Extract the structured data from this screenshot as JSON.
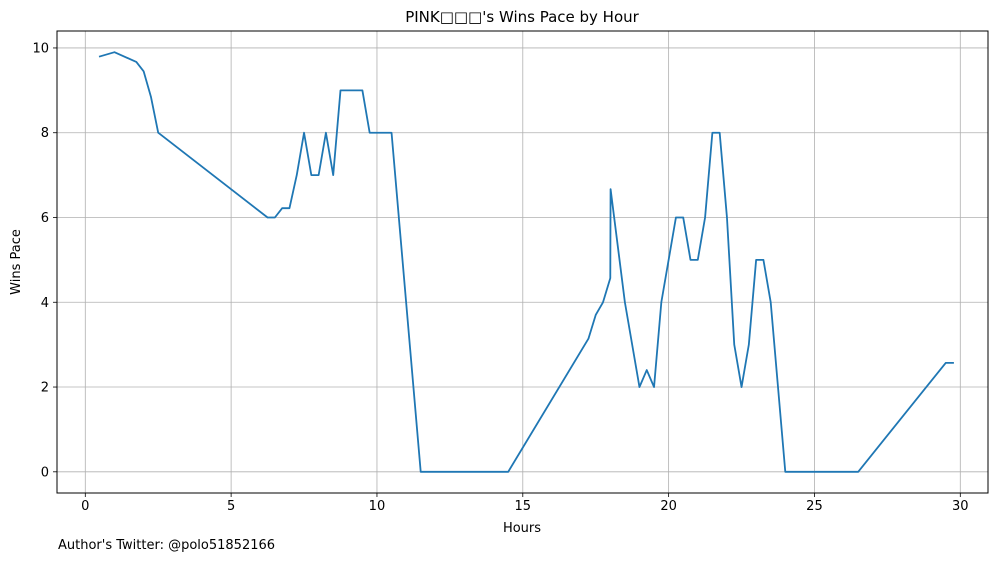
{
  "chart_data": {
    "type": "line",
    "title": "PINK□□□'s Wins Pace by Hour",
    "xlabel": "Hours",
    "ylabel": "Wins Pace",
    "xlim": [
      -0.97,
      30.95
    ],
    "ylim": [
      -0.5,
      10.4
    ],
    "xticks": [
      0,
      5,
      10,
      15,
      20,
      25,
      30
    ],
    "yticks": [
      0,
      2,
      4,
      6,
      8,
      10
    ],
    "grid": true,
    "color": "#1f77b4",
    "series": [
      {
        "x": [
          0.5,
          1.0,
          1.75,
          2.0,
          2.25,
          2.5,
          6.25,
          6.5,
          6.75,
          7.0,
          7.25,
          7.5,
          7.75,
          8.0,
          8.25,
          8.5,
          8.75,
          9.0,
          9.25,
          9.5,
          9.75,
          10.0,
          10.25,
          10.5,
          11.5,
          14.5,
          17.25,
          17.5,
          17.75,
          18.0,
          18.01,
          18.5,
          18.75,
          19.0,
          19.25,
          19.5,
          19.75,
          20.0,
          20.25,
          20.5,
          20.75,
          21.0,
          21.25,
          21.5,
          21.75,
          22.0,
          22.25,
          22.5,
          22.75,
          23.0,
          23.25,
          23.5,
          24.0,
          26.5,
          29.5,
          29.75
        ],
        "y": [
          9.8,
          9.9,
          9.67,
          9.45,
          8.85,
          8.0,
          6.0,
          6.0,
          6.22,
          6.22,
          7.0,
          8.0,
          7.0,
          7.0,
          8.0,
          7.0,
          9.0,
          9.0,
          9.0,
          9.0,
          8.0,
          8.0,
          8.0,
          8.0,
          0.0,
          0.0,
          3.14,
          3.7,
          4.0,
          4.57,
          6.67,
          4.0,
          3.0,
          2.0,
          2.4,
          2.0,
          4.0,
          5.0,
          6.0,
          6.0,
          5.0,
          5.0,
          6.0,
          8.0,
          8.0,
          6.0,
          3.0,
          2.0,
          3.0,
          5.0,
          5.0,
          4.0,
          0.0,
          0.0,
          2.57,
          2.57
        ]
      }
    ]
  },
  "footer": {
    "author": "Author's Twitter: @polo51852166"
  }
}
